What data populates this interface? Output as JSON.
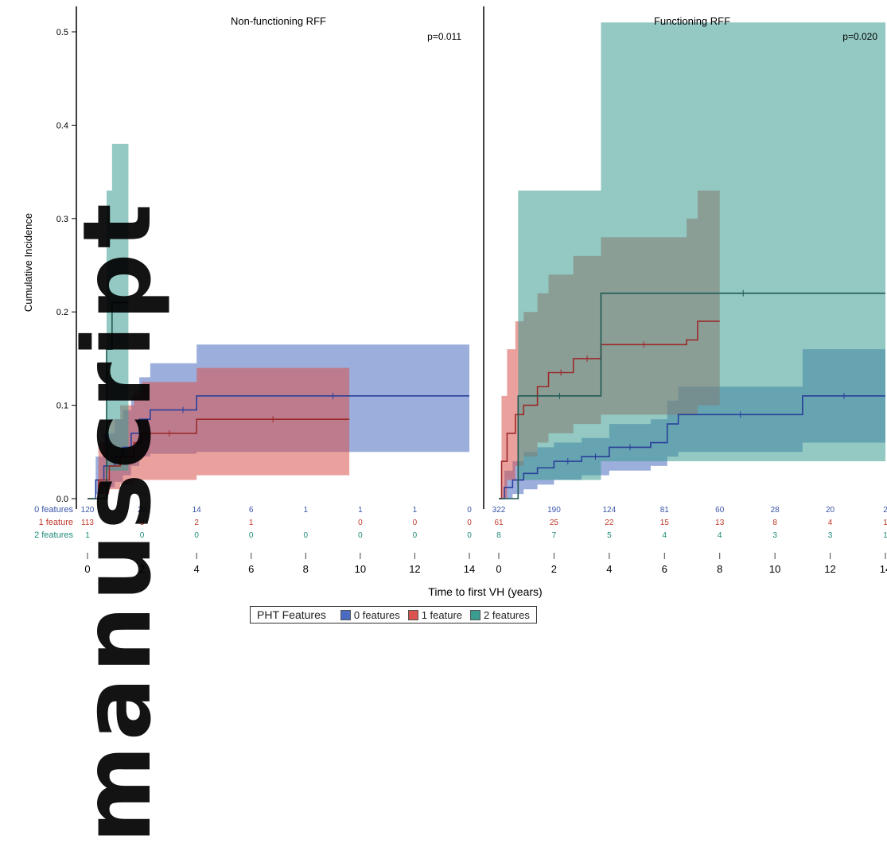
{
  "panels": [
    {
      "title": "Non-functioning RFF",
      "pvalue": "p=0.011"
    },
    {
      "title": "Functioning RFF",
      "pvalue": "p=0.020"
    }
  ],
  "ylabel": "Cumulative Incidence",
  "xlabel": "Time to first VH (years)",
  "watermark": "manuscript",
  "legend": {
    "title": "PHT Features",
    "items": [
      {
        "label": "0 features",
        "color": "#4a6cc0"
      },
      {
        "label": "1 feature",
        "color": "#d9534f"
      },
      {
        "label": "2 features",
        "color": "#3a9d8f"
      }
    ]
  },
  "risk_table": {
    "row_labels": [
      "0 features",
      "1 feature",
      "2 features"
    ],
    "row_colors": [
      "#3a55a8",
      "#c0392b",
      "#1f8a7a"
    ],
    "panels": [
      [
        [
          "120",
          "20",
          "14",
          "6",
          "1",
          "1",
          "1",
          "0"
        ],
        [
          "113",
          "3",
          "2",
          "1",
          "",
          "0",
          "0",
          "0"
        ],
        [
          "1",
          "0",
          "0",
          "0",
          "0",
          "0",
          "0",
          "0"
        ]
      ],
      [
        [
          "322",
          "190",
          "124",
          "81",
          "60",
          "28",
          "20",
          "2"
        ],
        [
          "61",
          "25",
          "22",
          "15",
          "13",
          "8",
          "4",
          "1"
        ],
        [
          "8",
          "7",
          "5",
          "4",
          "4",
          "3",
          "3",
          "1"
        ]
      ]
    ]
  },
  "chart_data": [
    {
      "type": "line",
      "title": "Non-functioning RFF",
      "annotation": "p=0.011",
      "xlabel": "Time to first VH (years)",
      "ylabel": "Cumulative Incidence",
      "xticks": [
        0,
        2,
        4,
        6,
        8,
        10,
        12,
        14
      ],
      "yticks": [
        0.0,
        0.1,
        0.2,
        0.3,
        0.4,
        0.5
      ],
      "xlim": [
        0,
        14
      ],
      "ylim": [
        0,
        0.52
      ],
      "grid": false,
      "series": [
        {
          "name": "0 features",
          "x": [
            0,
            0.3,
            0.6,
            1.0,
            1.3,
            1.6,
            1.9,
            2.3,
            3.0,
            4.0,
            14.0
          ],
          "y": [
            0,
            0.02,
            0.035,
            0.045,
            0.055,
            0.07,
            0.085,
            0.095,
            0.095,
            0.11,
            0.11
          ],
          "ci_lower": [
            0,
            0.005,
            0.012,
            0.018,
            0.025,
            0.035,
            0.045,
            0.048,
            0.048,
            0.05,
            0.05
          ],
          "ci_upper": [
            0,
            0.045,
            0.07,
            0.085,
            0.095,
            0.11,
            0.13,
            0.145,
            0.145,
            0.165,
            0.165
          ]
        },
        {
          "name": "1 feature",
          "x": [
            0,
            0.4,
            0.8,
            1.2,
            1.7,
            2.0,
            4.0,
            9.6
          ],
          "y": [
            0,
            0.02,
            0.035,
            0.045,
            0.06,
            0.07,
            0.085,
            0.085
          ],
          "ci_lower": [
            0,
            0.005,
            0.01,
            0.015,
            0.02,
            0.02,
            0.025,
            0.025
          ],
          "ci_upper": [
            0,
            0.06,
            0.085,
            0.1,
            0.115,
            0.125,
            0.14,
            0.14
          ]
        },
        {
          "name": "2 features",
          "x": [
            0,
            0.7,
            0.9,
            1.5
          ],
          "y": [
            0,
            0.16,
            0.21,
            0.21
          ],
          "ci_lower": [
            0,
            0.03,
            0.03,
            0.03
          ],
          "ci_upper": [
            0,
            0.33,
            0.38,
            0.38
          ]
        }
      ]
    },
    {
      "type": "line",
      "title": "Functioning RFF",
      "annotation": "p=0.020",
      "xlabel": "Time to first VH (years)",
      "ylabel": "Cumulative Incidence",
      "xticks": [
        0,
        2,
        4,
        6,
        8,
        10,
        12,
        14
      ],
      "xlim": [
        0,
        14
      ],
      "ylim": [
        0,
        0.52
      ],
      "grid": false,
      "series": [
        {
          "name": "0 features",
          "x": [
            0,
            0.2,
            0.5,
            0.9,
            1.4,
            2.0,
            3.0,
            4.0,
            5.5,
            6.1,
            6.5,
            11.0,
            14.0
          ],
          "y": [
            0,
            0.012,
            0.02,
            0.027,
            0.033,
            0.04,
            0.045,
            0.055,
            0.06,
            0.08,
            0.09,
            0.11,
            0.11
          ],
          "ci_lower": [
            0,
            0.0,
            0.005,
            0.01,
            0.015,
            0.02,
            0.025,
            0.03,
            0.035,
            0.045,
            0.05,
            0.06,
            0.06
          ],
          "ci_upper": [
            0,
            0.03,
            0.04,
            0.05,
            0.055,
            0.06,
            0.065,
            0.08,
            0.085,
            0.105,
            0.12,
            0.16,
            0.16
          ]
        },
        {
          "name": "1 feature",
          "x": [
            0,
            0.1,
            0.3,
            0.6,
            0.9,
            1.4,
            1.8,
            2.7,
            3.7,
            6.8,
            7.2,
            8.0
          ],
          "y": [
            0,
            0.04,
            0.07,
            0.09,
            0.1,
            0.12,
            0.135,
            0.15,
            0.165,
            0.17,
            0.19,
            0.19
          ],
          "ci_lower": [
            0,
            0.0,
            0.02,
            0.035,
            0.045,
            0.06,
            0.07,
            0.08,
            0.09,
            0.09,
            0.1,
            0.1
          ],
          "ci_upper": [
            0,
            0.11,
            0.16,
            0.19,
            0.2,
            0.22,
            0.24,
            0.26,
            0.28,
            0.3,
            0.33,
            0.33
          ]
        },
        {
          "name": "2 features",
          "x": [
            0,
            0.7,
            3.7,
            14.0
          ],
          "y": [
            0,
            0.11,
            0.22,
            0.22
          ],
          "ci_lower": [
            0,
            0.02,
            0.04,
            0.04
          ],
          "ci_upper": [
            0,
            0.33,
            0.51,
            0.51
          ]
        }
      ]
    }
  ]
}
